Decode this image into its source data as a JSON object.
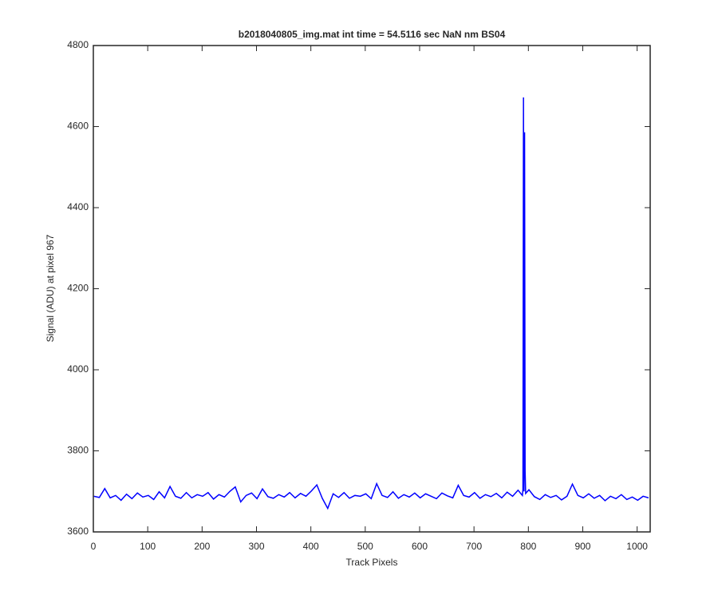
{
  "chart_data": {
    "type": "line",
    "title": "b2018040805_img.mat int time = 54.5116 sec  NaN nm BS04",
    "x_label": "Track Pixels",
    "y_label": "Signal (ADU) at pixel 967",
    "color": "#0000ff",
    "x": [
      1,
      11,
      21,
      31,
      41,
      51,
      61,
      71,
      81,
      91,
      101,
      111,
      121,
      131,
      141,
      151,
      161,
      171,
      181,
      191,
      201,
      211,
      221,
      231,
      241,
      251,
      261,
      271,
      281,
      291,
      301,
      311,
      321,
      331,
      341,
      351,
      361,
      371,
      381,
      391,
      401,
      411,
      421,
      431,
      441,
      451,
      461,
      471,
      481,
      491,
      501,
      511,
      521,
      531,
      541,
      551,
      561,
      571,
      581,
      591,
      601,
      611,
      621,
      631,
      641,
      651,
      661,
      671,
      681,
      691,
      701,
      711,
      721,
      731,
      741,
      751,
      761,
      771,
      781,
      789,
      790,
      791,
      792,
      793,
      794,
      795,
      801,
      811,
      821,
      831,
      841,
      851,
      861,
      871,
      881,
      891,
      901,
      911,
      921,
      931,
      941,
      951,
      961,
      971,
      981,
      991,
      1001,
      1011,
      1021
    ],
    "values": [
      3688,
      3685,
      3707,
      3684,
      3690,
      3678,
      3693,
      3682,
      3696,
      3686,
      3690,
      3680,
      3699,
      3684,
      3712,
      3688,
      3683,
      3697,
      3684,
      3692,
      3688,
      3697,
      3681,
      3692,
      3686,
      3700,
      3711,
      3674,
      3690,
      3696,
      3682,
      3706,
      3687,
      3683,
      3692,
      3686,
      3697,
      3684,
      3695,
      3688,
      3701,
      3716,
      3683,
      3658,
      3694,
      3685,
      3697,
      3683,
      3690,
      3688,
      3694,
      3682,
      3719,
      3690,
      3685,
      3699,
      3683,
      3692,
      3686,
      3696,
      3684,
      3694,
      3688,
      3682,
      3696,
      3689,
      3684,
      3715,
      3690,
      3686,
      3697,
      3683,
      3692,
      3687,
      3695,
      3684,
      3698,
      3688,
      3703,
      3690,
      3705,
      4672,
      3700,
      4586,
      3750,
      3695,
      3704,
      3687,
      3680,
      3692,
      3685,
      3690,
      3679,
      3688,
      3718,
      3690,
      3684,
      3694,
      3683,
      3690,
      3677,
      3688,
      3682,
      3692,
      3680,
      3686,
      3678,
      3688,
      3684
    ],
    "xlim": [
      0,
      1024
    ],
    "xticks": [
      0,
      100,
      200,
      300,
      400,
      500,
      600,
      700,
      800,
      900,
      1000
    ],
    "ylim": [
      3600,
      4800
    ],
    "yticks": [
      3600,
      3800,
      4000,
      4200,
      4400,
      4600,
      4800
    ],
    "grid": false
  }
}
